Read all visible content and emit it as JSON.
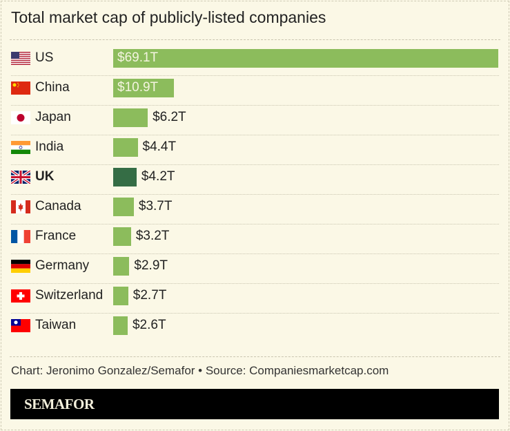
{
  "chart_data": {
    "type": "bar",
    "orientation": "horizontal",
    "title": "Total market cap of publicly-listed companies",
    "unit": "trillion USD",
    "categories": [
      "US",
      "China",
      "Japan",
      "India",
      "UK",
      "Canada",
      "France",
      "Germany",
      "Switzerland",
      "Taiwan"
    ],
    "values": [
      69.1,
      10.9,
      6.2,
      4.4,
      4.2,
      3.7,
      3.2,
      2.9,
      2.7,
      2.6
    ],
    "labels": [
      "$69.1T",
      "$10.9T",
      "$6.2T",
      "$4.4T",
      "$4.2T",
      "$3.7T",
      "$3.2T",
      "$2.9T",
      "$2.7T",
      "$2.6T"
    ],
    "highlight": "UK",
    "flags": [
      "us-flag-icon",
      "china-flag-icon",
      "japan-flag-icon",
      "india-flag-icon",
      "uk-flag-icon",
      "canada-flag-icon",
      "france-flag-icon",
      "germany-flag-icon",
      "switzerland-flag-icon",
      "taiwan-flag-icon"
    ],
    "colors": {
      "bar": "#8cbc5c",
      "highlight": "#356d45",
      "background": "#fbf8e6"
    },
    "grid": false
  },
  "source": "Chart: Jeronimo Gonzalez/Semafor • Source: Companiesmarketcap.com",
  "brand": "SEMAFOR"
}
